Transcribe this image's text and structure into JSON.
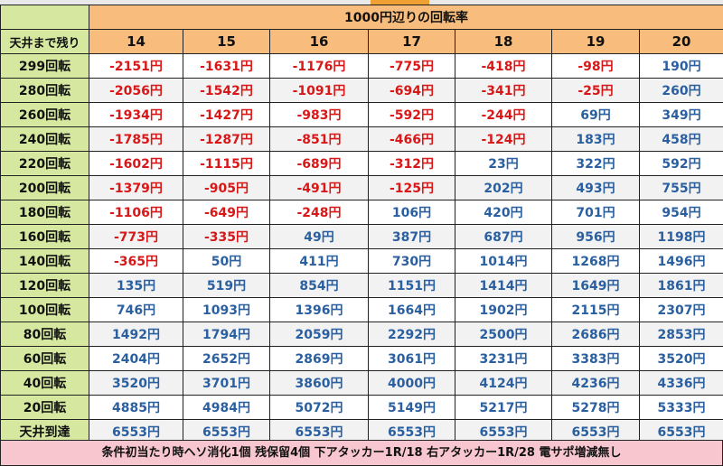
{
  "table": {
    "title": "1000円辺りの回転率",
    "corner_label": "天井まで残り",
    "columns": [
      "14",
      "15",
      "16",
      "17",
      "18",
      "19",
      "20"
    ],
    "rows": [
      {
        "label": "299回転",
        "values": [
          "-2151円",
          "-1631円",
          "-1176円",
          "-775円",
          "-418円",
          "-98円",
          "190円"
        ]
      },
      {
        "label": "280回転",
        "values": [
          "-2056円",
          "-1542円",
          "-1091円",
          "-694円",
          "-341円",
          "-25円",
          "260円"
        ]
      },
      {
        "label": "260回転",
        "values": [
          "-1934円",
          "-1427円",
          "-983円",
          "-592円",
          "-244円",
          "69円",
          "349円"
        ]
      },
      {
        "label": "240回転",
        "values": [
          "-1785円",
          "-1287円",
          "-851円",
          "-466円",
          "-124円",
          "183円",
          "458円"
        ]
      },
      {
        "label": "220回転",
        "values": [
          "-1602円",
          "-1115円",
          "-689円",
          "-312円",
          "23円",
          "322円",
          "592円"
        ]
      },
      {
        "label": "200回転",
        "values": [
          "-1379円",
          "-905円",
          "-491円",
          "-125円",
          "202円",
          "493円",
          "755円"
        ]
      },
      {
        "label": "180回転",
        "values": [
          "-1106円",
          "-649円",
          "-248円",
          "106円",
          "420円",
          "701円",
          "954円"
        ]
      },
      {
        "label": "160回転",
        "values": [
          "-773円",
          "-335円",
          "49円",
          "387円",
          "687円",
          "956円",
          "1198円"
        ]
      },
      {
        "label": "140回転",
        "values": [
          "-365円",
          "50円",
          "411円",
          "730円",
          "1014円",
          "1268円",
          "1496円"
        ]
      },
      {
        "label": "120回転",
        "values": [
          "135円",
          "519円",
          "854円",
          "1151円",
          "1414円",
          "1649円",
          "1861円"
        ]
      },
      {
        "label": "100回転",
        "values": [
          "746円",
          "1093円",
          "1396円",
          "1664円",
          "1902円",
          "2115円",
          "2307円"
        ]
      },
      {
        "label": "80回転",
        "values": [
          "1492円",
          "1794円",
          "2059円",
          "2292円",
          "2500円",
          "2686円",
          "2853円"
        ]
      },
      {
        "label": "60回転",
        "values": [
          "2404円",
          "2652円",
          "2869円",
          "3061円",
          "3231円",
          "3383円",
          "3520円"
        ]
      },
      {
        "label": "40回転",
        "values": [
          "3520円",
          "3701円",
          "3860円",
          "4000円",
          "4124円",
          "4236円",
          "4336円"
        ]
      },
      {
        "label": "20回転",
        "values": [
          "4885円",
          "4984円",
          "5072円",
          "5149円",
          "5217円",
          "5278円",
          "5333円"
        ]
      },
      {
        "label": "天井到達",
        "values": [
          "6553円",
          "6553円",
          "6553円",
          "6553円",
          "6553円",
          "6553円",
          "6553円"
        ]
      }
    ]
  },
  "footer": {
    "note": "条件初当たり時ヘソ消化1個 残保留4個 下アタッカー1R/18 右アタッカー1R/28 電サポ増減無し"
  },
  "colors": {
    "label_bg": "#d6e8a0",
    "header_bg": "#f8bd7c",
    "negative": "#d81818",
    "positive": "#2a5fa0",
    "footer_bg": "#f7c6cf"
  }
}
